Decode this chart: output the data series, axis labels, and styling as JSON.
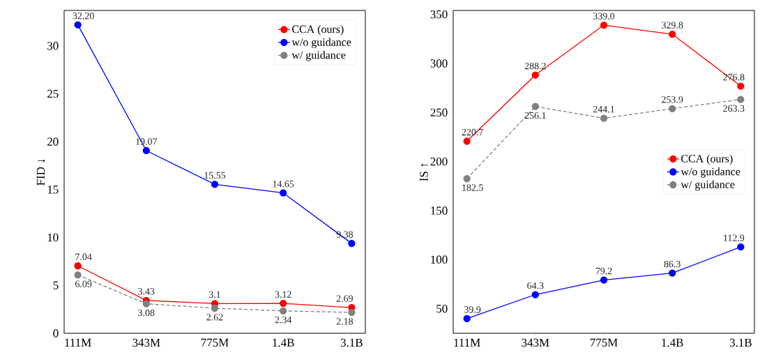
{
  "chart_data": [
    {
      "type": "line",
      "ylabel": "FID ↓",
      "categories": [
        "111M",
        "343M",
        "775M",
        "1.4B",
        "3.1B"
      ],
      "ylim": [
        0,
        33.7
      ],
      "yticks": [
        0,
        5,
        10,
        15,
        20,
        25,
        30
      ],
      "legend": "top right",
      "marker": "circle",
      "grid": false,
      "series": [
        {
          "name": "CCA (ours)",
          "color": "#ff0000",
          "line_style": "solid",
          "values": [
            7.04,
            3.43,
            3.1,
            3.12,
            2.69
          ],
          "value_labels": [
            "7.04",
            "3.43",
            "3.1",
            "3.12",
            "2.69"
          ]
        },
        {
          "name": "w/o guidance",
          "color": "#0000ff",
          "line_style": "solid",
          "values": [
            32.2,
            19.07,
            15.55,
            14.65,
            9.38
          ],
          "value_labels": [
            "32.20",
            "19.07",
            "15.55",
            "14.65",
            "9.38"
          ]
        },
        {
          "name": "w/ guidance",
          "color": "#808080",
          "line_style": "dashed",
          "values": [
            6.09,
            3.08,
            2.62,
            2.34,
            2.18
          ],
          "value_labels": [
            "6.09",
            "3.08",
            "2.62",
            "2.34",
            "2.18"
          ]
        }
      ]
    },
    {
      "type": "line",
      "ylabel": "IS ↑",
      "categories": [
        "111M",
        "343M",
        "775M",
        "1.4B",
        "3.1B"
      ],
      "ylim": [
        24.9,
        354
      ],
      "yticks": [
        50,
        100,
        150,
        200,
        250,
        300,
        350
      ],
      "legend": "right",
      "marker": "circle",
      "grid": false,
      "series": [
        {
          "name": "CCA (ours)",
          "color": "#ff0000",
          "line_style": "solid",
          "values": [
            220.7,
            288.2,
            339.0,
            329.8,
            276.8
          ],
          "value_labels": [
            "220.7",
            "288.2",
            "339.0",
            "329.8",
            "276.8"
          ]
        },
        {
          "name": "w/o guidance",
          "color": "#0000ff",
          "line_style": "solid",
          "values": [
            39.9,
            64.3,
            79.2,
            86.3,
            112.9
          ],
          "value_labels": [
            "39.9",
            "64.3",
            "79.2",
            "86.3",
            "112.9"
          ]
        },
        {
          "name": "w/ guidance",
          "color": "#808080",
          "line_style": "dashed",
          "values": [
            182.5,
            256.1,
            244.1,
            253.9,
            263.3
          ],
          "value_labels": [
            "182.5",
            "256.1",
            "244.1",
            "253.9",
            "263.3"
          ]
        }
      ]
    }
  ]
}
